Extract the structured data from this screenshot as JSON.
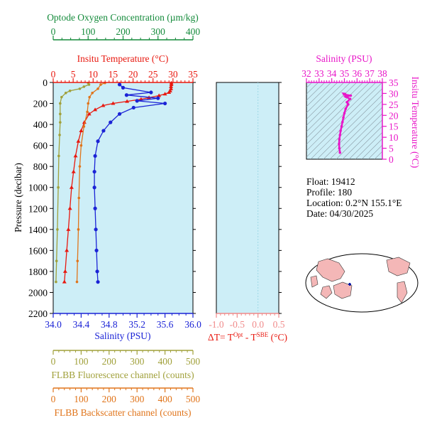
{
  "colors": {
    "plot_bg": "#cdeef7",
    "oxygen": "#138a3a",
    "temperature": "#e8180f",
    "salinity": "#1b23d6",
    "fluorescence": "#a0a03a",
    "backscatter": "#e0741a",
    "ts_axis": "#e816c8",
    "dt_axis": "#f08a8a",
    "land": "#f4b7b7"
  },
  "labels": {
    "oxygen_title": "Optode Oxygen Concentration (µm/kg)",
    "temp_title": "Insitu Temperature (°C)",
    "pressure_title": "Pressure (decibar)",
    "salinity_title": "Salinity (PSU)",
    "fluor_title": "FLBB Fluorescence channel (counts)",
    "bscat_title": "FLBB Backscatter channel (counts)",
    "dt_prefix": "ΔT= T",
    "dt_sup1": "Opt",
    "dt_mid": " - T",
    "dt_sup2": "SBE",
    "dt_suffix": " (°C)",
    "ts_sal_title": "Salinity (PSU)",
    "ts_temp_title": "Insitu Temperature (°C)"
  },
  "info": {
    "float": "Float:  19412",
    "profile": "Profile:  180",
    "location": "Location:  0.2°N  155.1°E",
    "date": "Date:  04/30/2025"
  },
  "chart_data": [
    {
      "type": "line",
      "name": "profile",
      "ylabel": "Pressure (decibar)",
      "ylim": [
        2200,
        0
      ],
      "y_ticks": [
        0,
        200,
        400,
        600,
        800,
        1000,
        1200,
        1400,
        1600,
        1800,
        2000,
        2200
      ],
      "axes": {
        "salinity": {
          "label": "Salinity (PSU)",
          "range": [
            34.0,
            36.0
          ],
          "ticks": [
            "34.0",
            "34.4",
            "34.8",
            "35.2",
            "35.6",
            "36.0"
          ]
        },
        "temperature": {
          "label": "Insitu Temperature (°C)",
          "range": [
            0,
            35
          ],
          "ticks": [
            "0",
            "5",
            "10",
            "15",
            "20",
            "25",
            "30",
            "35"
          ]
        },
        "oxygen": {
          "label": "Optode Oxygen Concentration (µm/kg)",
          "range": [
            0,
            400
          ],
          "ticks": [
            "0",
            "100",
            "200",
            "300",
            "400"
          ]
        },
        "fluorescence": {
          "label": "FLBB Fluorescence channel (counts)",
          "range": [
            0,
            500
          ],
          "ticks": [
            "0",
            "100",
            "200",
            "300",
            "400",
            "500"
          ]
        },
        "backscatter": {
          "label": "FLBB Backscatter channel (counts)",
          "range": [
            0,
            500
          ],
          "ticks": [
            "0",
            "100",
            "200",
            "300",
            "400",
            "500"
          ]
        }
      },
      "series": [
        {
          "key": "temperature",
          "points": [
            [
              29.6,
              5
            ],
            [
              29.6,
              20
            ],
            [
              29.5,
              40
            ],
            [
              29.5,
              60
            ],
            [
              29.3,
              80
            ],
            [
              29.0,
              95
            ],
            [
              28.0,
              110
            ],
            [
              26.5,
              125
            ],
            [
              24.0,
              145
            ],
            [
              22.0,
              160
            ],
            [
              18.5,
              180
            ],
            [
              15.0,
              200
            ],
            [
              12.5,
              220
            ],
            [
              10.5,
              260
            ],
            [
              9.0,
              300
            ],
            [
              7.8,
              380
            ],
            [
              7.0,
              460
            ],
            [
              6.3,
              560
            ],
            [
              5.6,
              700
            ],
            [
              5.1,
              850
            ],
            [
              4.6,
              1000
            ],
            [
              4.2,
              1200
            ],
            [
              3.8,
              1400
            ],
            [
              3.4,
              1600
            ],
            [
              3.0,
              1800
            ],
            [
              2.8,
              1900
            ]
          ]
        },
        {
          "key": "salinity",
          "points": [
            [
              34.95,
              20
            ],
            [
              35.0,
              50
            ],
            [
              35.4,
              95
            ],
            [
              35.05,
              120
            ],
            [
              35.5,
              150
            ],
            [
              35.2,
              175
            ],
            [
              35.6,
              200
            ],
            [
              35.15,
              240
            ],
            [
              34.95,
              300
            ],
            [
              34.82,
              380
            ],
            [
              34.72,
              460
            ],
            [
              34.64,
              560
            ],
            [
              34.6,
              700
            ],
            [
              34.59,
              850
            ],
            [
              34.59,
              1000
            ],
            [
              34.6,
              1200
            ],
            [
              34.61,
              1400
            ],
            [
              34.62,
              1600
            ],
            [
              34.63,
              1800
            ],
            [
              34.64,
              1900
            ]
          ]
        },
        {
          "key": "fluorescence",
          "points": [
            [
              125,
              5
            ],
            [
              128,
              20
            ],
            [
              110,
              40
            ],
            [
              95,
              60
            ],
            [
              60,
              80
            ],
            [
              45,
              100
            ],
            [
              30,
              140
            ],
            [
              25,
              200
            ],
            [
              25,
              300
            ],
            [
              25,
              380
            ],
            [
              23,
              500
            ],
            [
              20,
              700
            ],
            [
              18,
              1000
            ],
            [
              15,
              1400
            ],
            [
              12,
              1700
            ],
            [
              10,
              1900
            ]
          ]
        },
        {
          "key": "backscatter",
          "points": [
            [
              185,
              5
            ],
            [
              170,
              20
            ],
            [
              160,
              60
            ],
            [
              140,
              100
            ],
            [
              130,
              140
            ],
            [
              125,
              200
            ],
            [
              122,
              280
            ],
            [
              110,
              420
            ],
            [
              100,
              600
            ],
            [
              95,
              800
            ],
            [
              92,
              1100
            ],
            [
              90,
              1400
            ],
            [
              87,
              1700
            ],
            [
              85,
              1900
            ]
          ]
        }
      ]
    },
    {
      "type": "line",
      "name": "delta_t",
      "xlabel": "ΔT= TOpt - TSBE (°C)",
      "xlim": [
        -1.0,
        0.5
      ],
      "x_ticks": [
        "-1.0",
        "-0.5",
        "0.0",
        "0.5"
      ],
      "series": []
    },
    {
      "type": "scatter",
      "name": "t_s_diagram",
      "xlabel": "Salinity (PSU)",
      "ylabel": "Insitu Temperature (°C)",
      "xlim": [
        32,
        38
      ],
      "ylim": [
        0,
        35
      ],
      "x_ticks": [
        "32",
        "33",
        "34",
        "35",
        "36",
        "37",
        "38"
      ],
      "y_ticks": [
        "0",
        "5",
        "10",
        "15",
        "20",
        "25",
        "30",
        "35"
      ],
      "points": [
        [
          34.65,
          3
        ],
        [
          34.6,
          5
        ],
        [
          34.58,
          7
        ],
        [
          34.6,
          9
        ],
        [
          34.65,
          11
        ],
        [
          34.7,
          13
        ],
        [
          34.78,
          15
        ],
        [
          34.85,
          17
        ],
        [
          34.92,
          19
        ],
        [
          35.0,
          21
        ],
        [
          35.1,
          23
        ],
        [
          35.3,
          25
        ],
        [
          35.2,
          26
        ],
        [
          35.45,
          27.5
        ],
        [
          35.1,
          28.5
        ],
        [
          35.5,
          29
        ],
        [
          35.0,
          29.5
        ],
        [
          34.95,
          29.8
        ],
        [
          35.05,
          29.7
        ]
      ]
    }
  ]
}
